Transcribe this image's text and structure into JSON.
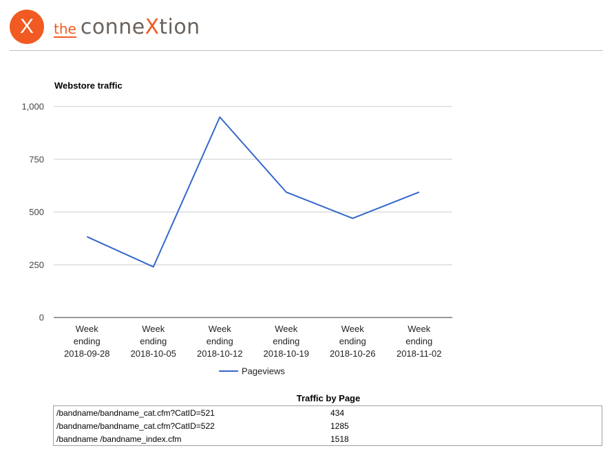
{
  "header": {
    "logo_mark": "X",
    "logo_the": "the",
    "logo_conne": "conne",
    "logo_x": "X",
    "logo_tion": "tion",
    "brand_color": "#f15a22"
  },
  "chart_data": {
    "type": "line",
    "title": "Webstore traffic",
    "categories": [
      [
        "Week",
        "ending",
        "2018-09-28"
      ],
      [
        "Week",
        "ending",
        "2018-10-05"
      ],
      [
        "Week",
        "ending",
        "2018-10-12"
      ],
      [
        "Week",
        "ending",
        "2018-10-19"
      ],
      [
        "Week",
        "ending",
        "2018-10-26"
      ],
      [
        "Week",
        "ending",
        "2018-11-02"
      ]
    ],
    "series": [
      {
        "name": "Pageviews",
        "color": "#3366cc",
        "values": [
          383,
          240,
          950,
          594,
          470,
          594
        ]
      }
    ],
    "ylim": [
      0,
      1000
    ],
    "yticks": [
      0,
      250,
      500,
      750,
      1000
    ],
    "ytick_labels": [
      "0",
      "250",
      "500",
      "750",
      "1,000"
    ],
    "grid": true,
    "legend": "bottom"
  },
  "table": {
    "title": "Traffic by Page",
    "rows": [
      {
        "page": "/bandname/bandname_cat.cfm?CatID=521",
        "views": "434"
      },
      {
        "page": "/bandname/bandname_cat.cfm?CatID=522",
        "views": "1285"
      },
      {
        "page": "/bandname /bandname_index.cfm",
        "views": "1518"
      }
    ]
  }
}
